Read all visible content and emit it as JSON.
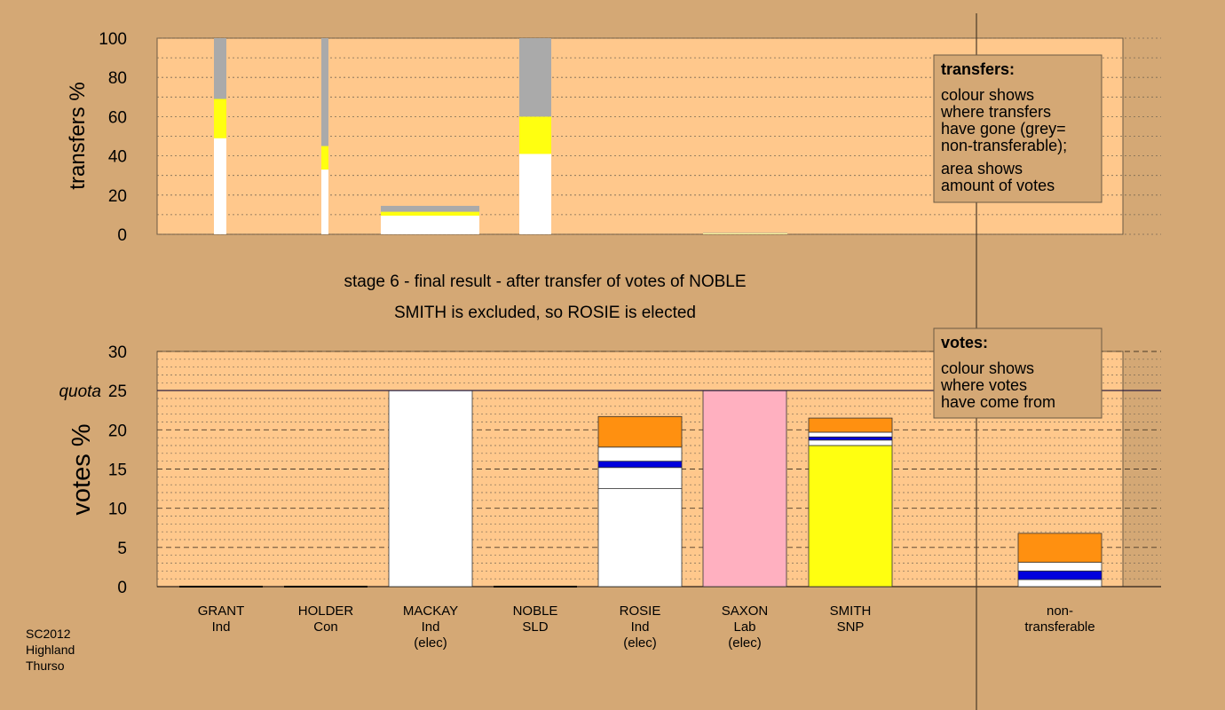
{
  "source_note": [
    "SC2012",
    "Highland",
    "Thurso"
  ],
  "stage_title": "stage 6 - final result - after transfer of votes of NOBLE",
  "stage_subtitle": "SMITH is excluded, so ROSIE is elected",
  "colors": {
    "background": "#d4a875",
    "plot": "#ffc88c",
    "ind_white": "#ffffff",
    "con_blue": "#0000dd",
    "sld_orange": "#ff9010",
    "lab_pink": "#ffb0c0",
    "snp_yellow": "#ffff10",
    "nontransferable_grey": "#aaaaaa"
  },
  "legend_transfers": {
    "title": "transfers:",
    "lines1": [
      "colour shows",
      "where transfers",
      "have gone (grey=",
      "non-transferable);"
    ],
    "lines2": [
      "area shows",
      "amount of votes"
    ]
  },
  "legend_votes": {
    "title": "votes:",
    "lines": [
      "colour shows",
      "where votes",
      "have come from"
    ]
  },
  "chart_data": [
    {
      "type": "bar",
      "name": "transfers",
      "ylabel": "transfers %",
      "ylim": [
        0,
        100
      ],
      "yticks": [
        0,
        20,
        40,
        60,
        80,
        100
      ],
      "grid": true,
      "note": "bar width shows amount of votes transferred; stacked segments show destination share",
      "bars": [
        {
          "from": "GRANT",
          "segments": [
            {
              "color": "white",
              "value": 49
            },
            {
              "color": "yellow",
              "value": 20
            },
            {
              "color": "grey",
              "value": 31
            }
          ]
        },
        {
          "from": "HOLDER",
          "segments": [
            {
              "color": "white",
              "value": 33
            },
            {
              "color": "yellow",
              "value": 12
            },
            {
              "color": "grey",
              "value": 55
            }
          ]
        },
        {
          "from": "MACKAY",
          "segments": [
            {
              "color": "white",
              "value": 9.5
            },
            {
              "color": "yellow",
              "value": 2
            },
            {
              "color": "grey",
              "value": 3
            }
          ]
        },
        {
          "from": "NOBLE",
          "segments": [
            {
              "color": "white",
              "value": 41
            },
            {
              "color": "yellow",
              "value": 19
            },
            {
              "color": "grey",
              "value": 40
            }
          ]
        },
        {
          "from": "SAXON",
          "segments": [
            {
              "color": "white",
              "value": 0.3
            },
            {
              "color": "yellow",
              "value": 0.3
            },
            {
              "color": "grey",
              "value": 0.2
            }
          ]
        }
      ]
    },
    {
      "type": "bar",
      "name": "votes",
      "ylabel": "votes %",
      "quota_label": "quota",
      "quota": 25,
      "ylim": [
        0,
        30
      ],
      "yticks": [
        0,
        5,
        10,
        15,
        20,
        25,
        30
      ],
      "grid": true,
      "categories": [
        {
          "name": "GRANT",
          "party": "Ind",
          "status": ""
        },
        {
          "name": "HOLDER",
          "party": "Con",
          "status": ""
        },
        {
          "name": "MACKAY",
          "party": "Ind",
          "status": "(elec)"
        },
        {
          "name": "NOBLE",
          "party": "SLD",
          "status": ""
        },
        {
          "name": "ROSIE",
          "party": "Ind",
          "status": "(elec)"
        },
        {
          "name": "SAXON",
          "party": "Lab",
          "status": "(elec)"
        },
        {
          "name": "SMITH",
          "party": "SNP",
          "status": ""
        },
        {
          "name": "non-",
          "party": "transferable",
          "status": ""
        }
      ],
      "stacks": [
        [],
        [],
        [
          {
            "color": "white",
            "value": 25
          }
        ],
        [],
        [
          {
            "color": "white",
            "value": 12.5
          },
          {
            "color": "white",
            "value": 2.7
          },
          {
            "color": "blue",
            "value": 0.8
          },
          {
            "color": "white",
            "value": 1.8
          },
          {
            "color": "orange",
            "value": 3.9
          }
        ],
        [
          {
            "color": "pink",
            "value": 25
          }
        ],
        [
          {
            "color": "yellow",
            "value": 18
          },
          {
            "color": "white",
            "value": 0.7
          },
          {
            "color": "blue",
            "value": 0.4
          },
          {
            "color": "white",
            "value": 0.6
          },
          {
            "color": "orange",
            "value": 1.8
          }
        ],
        [
          {
            "color": "white",
            "value": 0.9
          },
          {
            "color": "blue",
            "value": 1.1
          },
          {
            "color": "white",
            "value": 1.1
          },
          {
            "color": "orange",
            "value": 3.7
          }
        ]
      ]
    }
  ]
}
